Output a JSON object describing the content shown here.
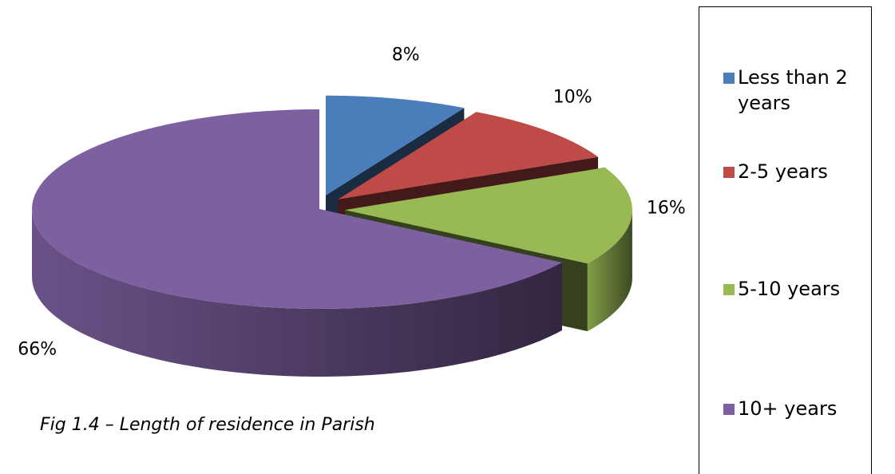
{
  "chart_data": {
    "type": "pie3d",
    "title": "Fig 1.4 – Length of residence in Parish",
    "categories": [
      "Less than 2 years",
      "2-5 years",
      "5-10 years",
      "10+ years"
    ],
    "values": [
      8,
      10,
      16,
      66
    ],
    "value_labels": [
      "8%",
      "10%",
      "16%",
      "66%"
    ],
    "colors": [
      "#4a7ebb",
      "#be4b48",
      "#98b954",
      "#7d60a0"
    ],
    "legend": "right"
  }
}
